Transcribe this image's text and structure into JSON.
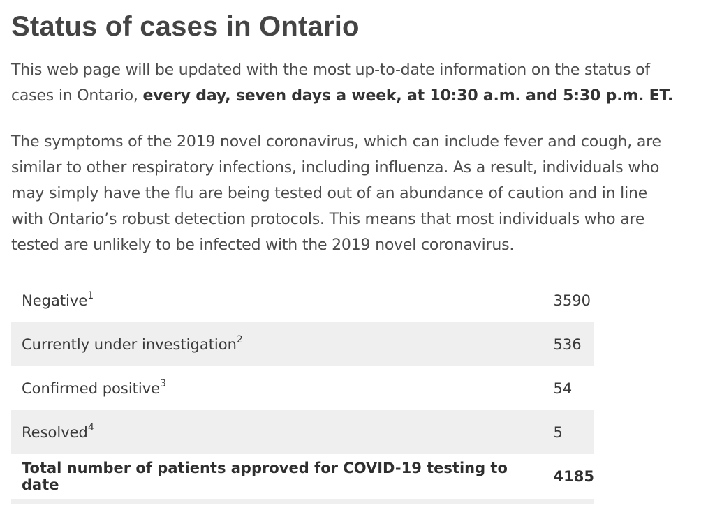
{
  "header": {
    "title": "Status of cases in Ontario"
  },
  "intro": {
    "text": "This web page will be updated with the most up-to-date information on the status of cases in Ontario, ",
    "bold": "every day, seven days a week, at 10:30 a.m. and 5:30 p.m. ET."
  },
  "symptoms": {
    "text": "The symptoms of the 2019 novel coronavirus, which can include fever and cough, are similar to other respiratory infections, including influenza. As a result, individuals who may simply have the flu are being tested out of an abundance of caution and in line with Ontario’s robust detection protocols. This means that most individuals who are tested are unlikely to be infected with the 2019 novel coronavirus."
  },
  "table": {
    "rows": [
      {
        "label": "Negative",
        "note": "1",
        "value": "3590"
      },
      {
        "label": "Currently under investigation",
        "note": "2",
        "value": "536"
      },
      {
        "label": "Confirmed positive",
        "note": "3",
        "value": "54"
      },
      {
        "label": "Resolved",
        "note": "4",
        "value": "5"
      }
    ],
    "total": {
      "label": "Total number of patients approved for COVID-19 testing to date",
      "value": "4185"
    }
  }
}
